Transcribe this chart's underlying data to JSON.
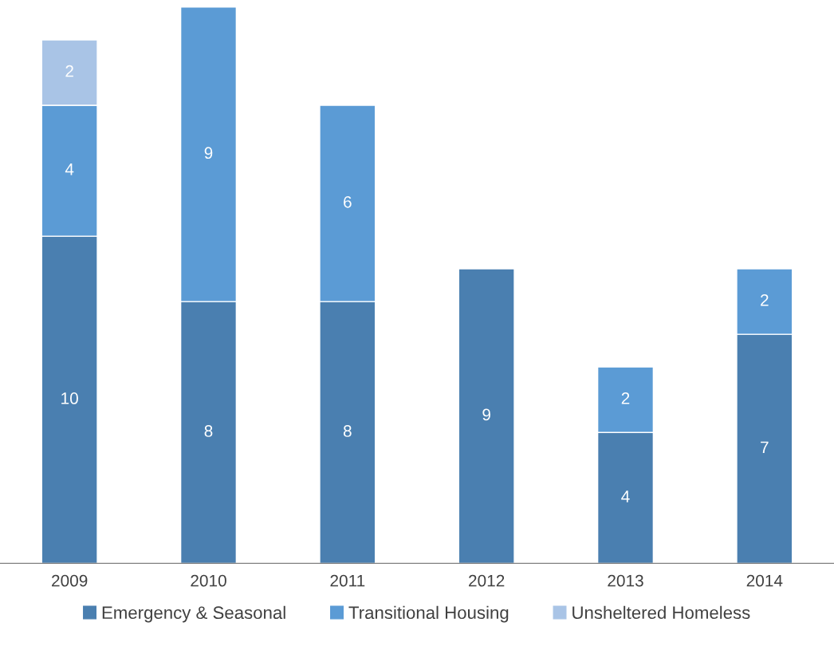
{
  "chart_data": {
    "type": "bar",
    "stacked": true,
    "data_labels": true,
    "grid": false,
    "legend": "bottom",
    "categories": [
      "2009",
      "2010",
      "2011",
      "2012",
      "2013",
      "2014"
    ],
    "series": [
      {
        "name": "Emergency & Seasonal",
        "color": "#4a7fb0",
        "values": [
          10,
          8,
          8,
          9,
          4,
          7
        ]
      },
      {
        "name": "Transitional Housing",
        "color": "#5b9bd5",
        "values": [
          4,
          9,
          6,
          null,
          2,
          2
        ]
      },
      {
        "name": "Unsheltered Homeless",
        "color": "#a9c4e6",
        "values": [
          2,
          null,
          null,
          null,
          null,
          null
        ]
      }
    ]
  }
}
